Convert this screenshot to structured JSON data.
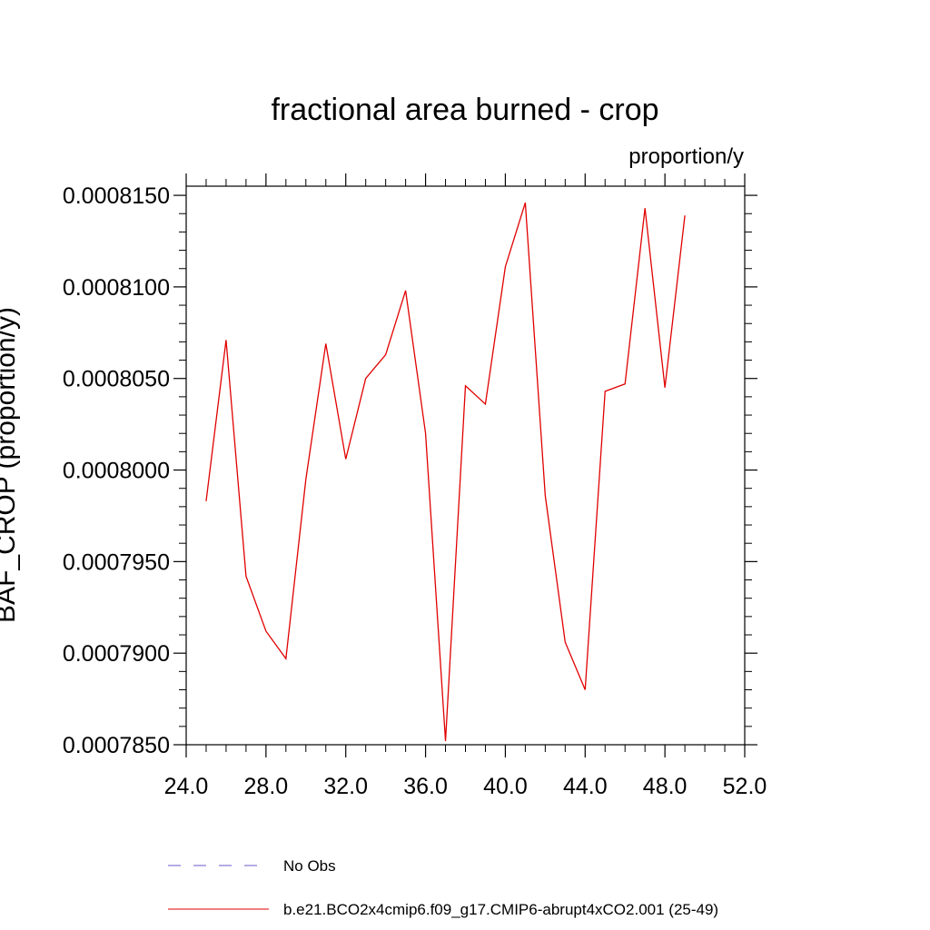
{
  "chart_data": {
    "type": "line",
    "title": "fractional area burned - crop",
    "units_label": "proportion/y",
    "ylabel": "BAF_CROP  (proportion/y)",
    "xlabel": "",
    "xlim": [
      24.0,
      52.0
    ],
    "ylim": [
      0.000785,
      0.0008155
    ],
    "x_ticks": [
      24.0,
      28.0,
      32.0,
      36.0,
      40.0,
      44.0,
      48.0,
      52.0
    ],
    "x_tick_labels": [
      "24.0",
      "28.0",
      "32.0",
      "36.0",
      "40.0",
      "44.0",
      "48.0",
      "52.0"
    ],
    "y_ticks": [
      0.000785,
      0.00079,
      0.000795,
      0.0008,
      0.000805,
      0.00081,
      0.000815
    ],
    "y_tick_labels": [
      "0.0007850",
      "0.0007900",
      "0.0007950",
      "0.0008000",
      "0.0008050",
      "0.0008100",
      "0.0008150"
    ],
    "grid": false,
    "legend_position": "bottom",
    "series": [
      {
        "name": "No Obs",
        "color": "#6a5acd",
        "dash": "dashed",
        "x": [],
        "y": []
      },
      {
        "name": "b.e21.BCO2x4cmip6.f09_g17.CMIP6-abrupt4xCO2.001 (25-49)",
        "color": "#e00000",
        "dash": "solid",
        "x": [
          25,
          26,
          27,
          28,
          29,
          30,
          31,
          32,
          33,
          34,
          35,
          36,
          37,
          38,
          39,
          40,
          41,
          42,
          43,
          44,
          45,
          46,
          47,
          48,
          49
        ],
        "y": [
          0.0007983,
          0.0008071,
          0.0007942,
          0.0007912,
          0.0007897,
          0.0007995,
          0.0008069,
          0.0008006,
          0.000805,
          0.0008063,
          0.0008098,
          0.000802,
          0.0007852,
          0.0008046,
          0.0008036,
          0.0008111,
          0.0008146,
          0.0007986,
          0.0007906,
          0.000788,
          0.0008043,
          0.0008047,
          0.0008143,
          0.0008045,
          0.0008139
        ]
      }
    ]
  }
}
